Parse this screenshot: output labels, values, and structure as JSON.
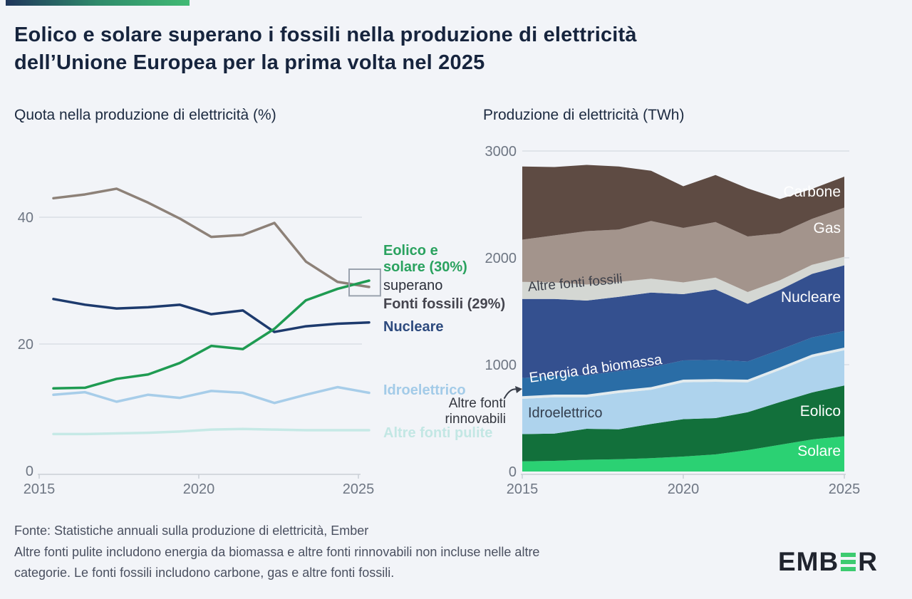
{
  "page": {
    "title": "Eolico e solare superano i fossili nella produzione di elettricità\ndell’Unione Europea per la prima volta nel 2025",
    "footer": {
      "source": "Fonte: Statistiche annuali sulla produzione di elettricità, Ember",
      "note": "Altre fonti pulite includono energia da biomassa e altre fonti rinnovabili non incluse nelle altre\ncategorie. Le fonti fossili includono carbone, gas e altre fonti fossili."
    },
    "logo": {
      "part1": "EMB",
      "part2": "R"
    }
  },
  "colors": {
    "background": "#f2f4f8",
    "accent_gradient_start": "#20365c",
    "accent_gradient_end": "#41ba74",
    "grid": "#dadfe5",
    "axis": "#c9ced6",
    "tick_label": "#6e7683",
    "highlight_box_border": "#9aa2ae",
    "logo_green": "#3dcb70"
  },
  "chart_data": [
    {
      "type": "line",
      "title": "Quota nella produzione di elettricità (%)",
      "x": [
        2015,
        2016,
        2017,
        2018,
        2019,
        2020,
        2021,
        2022,
        2023,
        2024,
        2025
      ],
      "series": [
        {
          "id": "altre-fonti-pulite",
          "name": "Altre fonti pulite",
          "color": "#c6e9e6",
          "values": [
            5.8,
            5.8,
            5.9,
            6.0,
            6.2,
            6.5,
            6.6,
            6.5,
            6.4,
            6.4,
            6.4
          ]
        },
        {
          "id": "idroelettrico",
          "name": "Idroelettrico",
          "color": "#a7cde9",
          "values": [
            12.0,
            12.4,
            10.9,
            12.0,
            11.5,
            12.6,
            12.3,
            10.7,
            12.0,
            13.2,
            12.3
          ]
        },
        {
          "id": "fonti-fossili",
          "name": "Fonti fossili",
          "color": "#8d8178",
          "values": [
            43.0,
            43.6,
            44.5,
            42.3,
            39.8,
            36.9,
            37.2,
            39.1,
            33.0,
            29.8,
            29.0
          ]
        },
        {
          "id": "nucleare",
          "name": "Nucleare",
          "color": "#1d3a6d",
          "values": [
            27.1,
            26.2,
            25.6,
            25.8,
            26.2,
            24.7,
            25.3,
            21.9,
            22.8,
            23.2,
            23.4
          ]
        },
        {
          "id": "eolico-e-solare",
          "name": "Eolico e solare",
          "color": "#1f9b52",
          "values": [
            13.0,
            13.1,
            14.5,
            15.2,
            17.0,
            19.7,
            19.2,
            22.4,
            26.9,
            28.7,
            30.0
          ]
        }
      ],
      "yticks": [
        0,
        20,
        40
      ],
      "xticks": [
        2015,
        2020,
        2025
      ],
      "ylim": [
        0,
        49
      ],
      "grid": true,
      "highlight_box": {
        "year_start": 2024.71,
        "year_end": 2025.69,
        "value_top": 31.8,
        "value_bottom": 27.6
      },
      "annotations": {
        "eolico_solare": "Eolico e\nsolare (30%)",
        "superano": "superano",
        "fossili": "Fonti fossili (29%)",
        "nucleare": "Nucleare",
        "idro": "Idroelettrico",
        "altre_rinnovabili": "Altre fonti\nrinnovabili",
        "altre_pulite": "Altre fonti pulite"
      }
    },
    {
      "type": "area",
      "title": "Produzione di elettricità (TWh)",
      "x": [
        2015,
        2016,
        2017,
        2018,
        2019,
        2020,
        2021,
        2022,
        2023,
        2024,
        2025
      ],
      "series": [
        {
          "id": "solare",
          "name": "Solare",
          "color": "#2bd173",
          "values": [
            95,
            100,
            110,
            115,
            125,
            140,
            160,
            200,
            250,
            300,
            330
          ]
        },
        {
          "id": "eolico",
          "name": "Eolico",
          "color": "#12703b",
          "values": [
            255,
            255,
            290,
            280,
            320,
            350,
            340,
            355,
            400,
            440,
            475
          ]
        },
        {
          "id": "idroelettrico",
          "name": "Idroelettrico",
          "color": "#aed3ed",
          "values": [
            330,
            340,
            295,
            340,
            320,
            345,
            340,
            280,
            300,
            330,
            330
          ]
        },
        {
          "id": "altre-fonti-rinnovabili",
          "name": "Altre fonti rinnovabili",
          "color": "#e3ebee",
          "values": [
            25,
            25,
            25,
            25,
            25,
            25,
            25,
            25,
            25,
            25,
            25
          ]
        },
        {
          "id": "energia-da-biomassa",
          "name": "Energia da biomassa",
          "color": "#2a6da6",
          "values": [
            170,
            175,
            180,
            180,
            185,
            180,
            180,
            170,
            165,
            160,
            155
          ]
        },
        {
          "id": "nucleare",
          "name": "Nucleare",
          "color": "#34508f",
          "values": [
            740,
            720,
            700,
            695,
            700,
            620,
            660,
            540,
            560,
            595,
            615
          ]
        },
        {
          "id": "altre-fonti-fossili",
          "name": "Altre fonti fossili",
          "color": "#d4d7d3",
          "values": [
            160,
            155,
            150,
            140,
            130,
            110,
            110,
            110,
            90,
            85,
            80
          ]
        },
        {
          "id": "gas",
          "name": "Gas",
          "color": "#a3948c",
          "values": [
            395,
            440,
            500,
            490,
            540,
            510,
            520,
            520,
            440,
            430,
            460
          ]
        },
        {
          "id": "carbone",
          "name": "Carbone",
          "color": "#5e4b43",
          "values": [
            685,
            640,
            620,
            590,
            470,
            390,
            440,
            450,
            320,
            280,
            290
          ]
        }
      ],
      "yticks": [
        0,
        1000,
        2000,
        3000
      ],
      "xticks": [
        2015,
        2020,
        2025
      ],
      "ylim": [
        0,
        3000
      ],
      "grid": true,
      "labels": {
        "carbone": "Carbone",
        "gas": "Gas",
        "nucleare": "Nucleare",
        "altre_fossili": "Altre fonti fossili",
        "biomassa": "Energia da biomassa",
        "idro": "Idroelettrico",
        "eolico": "Eolico",
        "solare": "Solare"
      }
    }
  ]
}
